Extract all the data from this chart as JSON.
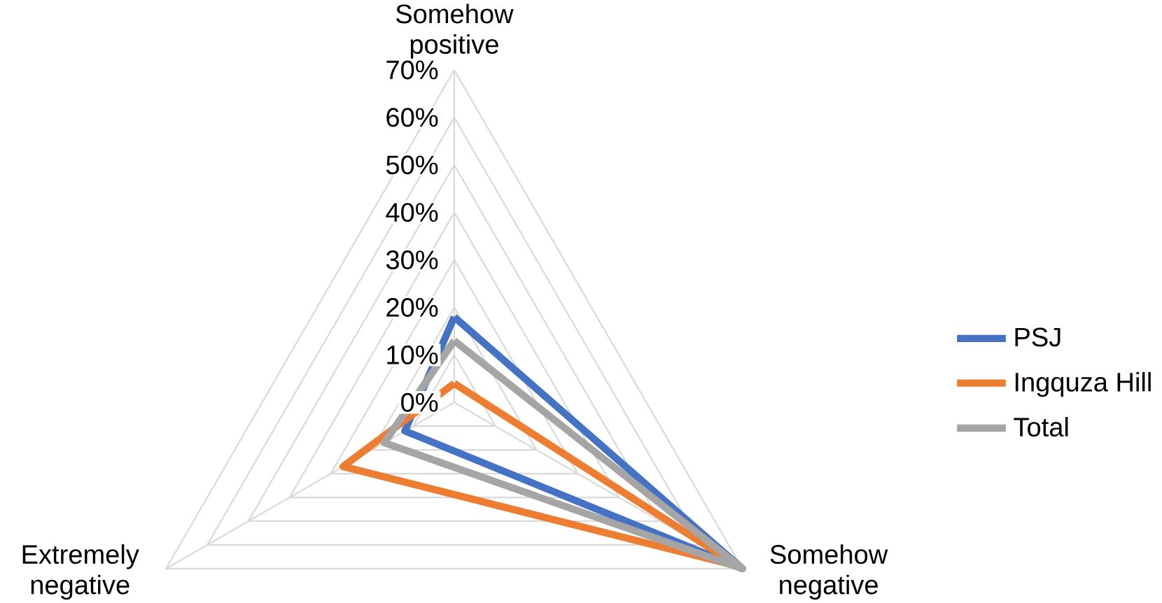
{
  "chart_data": {
    "type": "radar",
    "categories": [
      "Somehow positive",
      "Somehow negative",
      "Extremely negative"
    ],
    "series": [
      {
        "name": "PSJ",
        "color": "#4472c4",
        "values": [
          18,
          70,
          12
        ]
      },
      {
        "name": "Ingquza Hill",
        "color": "#ed7d31",
        "values": [
          4,
          69,
          27
        ]
      },
      {
        "name": "Total",
        "color": "#a5a5a5",
        "values": [
          13,
          70,
          17
        ]
      }
    ],
    "ylim": [
      0,
      70
    ],
    "yticks": [
      {
        "value": 0,
        "label": "0%"
      },
      {
        "value": 10,
        "label": "10%"
      },
      {
        "value": 20,
        "label": "20%"
      },
      {
        "value": 30,
        "label": "30%"
      },
      {
        "value": 40,
        "label": "40%"
      },
      {
        "value": 50,
        "label": "50%"
      },
      {
        "value": 60,
        "label": "60%"
      },
      {
        "value": 70,
        "label": "70%"
      }
    ],
    "grid": true,
    "legend": "right"
  }
}
